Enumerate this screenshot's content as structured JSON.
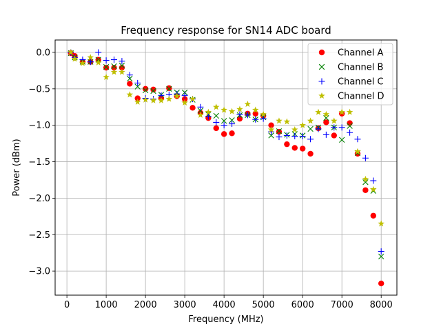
{
  "chart_data": {
    "type": "scatter",
    "title": "Frequency response for SN14 ADC board",
    "xlabel": "Frequency (MHz)",
    "ylabel": "Power (dBm)",
    "xlim": [
      -300,
      8400
    ],
    "ylim": [
      -3.33,
      0.17
    ],
    "xticks": [
      0,
      1000,
      2000,
      3000,
      4000,
      5000,
      6000,
      7000,
      8000
    ],
    "yticks": [
      0.0,
      -0.5,
      -1.0,
      -1.5,
      -2.0,
      -2.5,
      -3.0
    ],
    "xtick_labels": [
      "0",
      "1000",
      "2000",
      "3000",
      "4000",
      "5000",
      "6000",
      "7000",
      "8000"
    ],
    "ytick_labels": [
      "0.0",
      "−0.5",
      "−1.0",
      "−1.5",
      "−2.0",
      "−2.5",
      "−3.0"
    ],
    "grid": true,
    "legend_position": "upper-right",
    "x": [
      100,
      200,
      400,
      600,
      800,
      1000,
      1200,
      1400,
      1600,
      1800,
      2000,
      2200,
      2400,
      2600,
      2800,
      3000,
      3200,
      3400,
      3600,
      3800,
      4000,
      4200,
      4400,
      4600,
      4800,
      5000,
      5200,
      5400,
      5600,
      5800,
      6000,
      6200,
      6400,
      6600,
      6800,
      7000,
      7200,
      7400,
      7600,
      7800,
      8000
    ],
    "series": [
      {
        "name": "Channel A",
        "marker": "circle",
        "color": "#ff0000",
        "values": [
          -0.01,
          -0.05,
          -0.13,
          -0.13,
          -0.1,
          -0.21,
          -0.21,
          -0.21,
          -0.43,
          -0.63,
          -0.5,
          -0.51,
          -0.63,
          -0.49,
          -0.6,
          -0.64,
          -0.76,
          -0.83,
          -0.9,
          -1.04,
          -1.12,
          -1.11,
          -0.91,
          -0.84,
          -0.84,
          -0.87,
          -1.0,
          -1.09,
          -1.26,
          -1.31,
          -1.32,
          -1.39,
          -1.04,
          -0.96,
          -1.14,
          -0.84,
          -0.97,
          -1.39,
          -1.89,
          -2.24,
          -3.17
        ]
      },
      {
        "name": "Channel B",
        "marker": "x",
        "color": "#008000",
        "values": [
          -0.01,
          -0.07,
          -0.13,
          -0.13,
          -0.1,
          -0.2,
          -0.19,
          -0.18,
          -0.36,
          -0.47,
          -0.52,
          -0.53,
          -0.58,
          -0.5,
          -0.55,
          -0.55,
          -0.65,
          -0.8,
          -0.85,
          -0.87,
          -0.94,
          -0.93,
          -0.86,
          -0.86,
          -0.92,
          -0.89,
          -1.14,
          -1.08,
          -1.13,
          -1.12,
          -1.14,
          -1.05,
          -1.03,
          -0.9,
          -1.03,
          -1.2,
          -1.01,
          -1.38,
          -1.78,
          -1.9,
          -2.8
        ]
      },
      {
        "name": "Channel C",
        "marker": "plus",
        "color": "#0000ff",
        "values": [
          0.0,
          -0.07,
          -0.1,
          -0.13,
          0.0,
          -0.11,
          -0.1,
          -0.12,
          -0.31,
          -0.42,
          -0.63,
          -0.64,
          -0.59,
          -0.58,
          -0.57,
          -0.59,
          -0.64,
          -0.75,
          -0.88,
          -0.96,
          -1.0,
          -0.98,
          -0.85,
          -0.86,
          -0.92,
          -0.91,
          -1.09,
          -1.16,
          -1.14,
          -1.15,
          -1.15,
          -1.19,
          -1.05,
          -1.13,
          -1.03,
          -1.03,
          -1.1,
          -1.19,
          -1.45,
          -1.76,
          -2.73
        ]
      },
      {
        "name": "Channel D",
        "marker": "star",
        "color": "#bfbf00",
        "values": [
          0.0,
          -0.09,
          -0.15,
          -0.07,
          -0.14,
          -0.34,
          -0.27,
          -0.27,
          -0.58,
          -0.68,
          -0.65,
          -0.66,
          -0.66,
          -0.64,
          -0.6,
          -0.69,
          -0.64,
          -0.86,
          -0.82,
          -0.75,
          -0.79,
          -0.81,
          -0.78,
          -0.71,
          -0.79,
          -0.85,
          -1.06,
          -0.94,
          -0.95,
          -1.06,
          -1.0,
          -0.94,
          -0.82,
          -0.85,
          -0.94,
          -0.82,
          -0.82,
          -1.36,
          -1.74,
          -1.88,
          -2.35
        ]
      }
    ]
  }
}
